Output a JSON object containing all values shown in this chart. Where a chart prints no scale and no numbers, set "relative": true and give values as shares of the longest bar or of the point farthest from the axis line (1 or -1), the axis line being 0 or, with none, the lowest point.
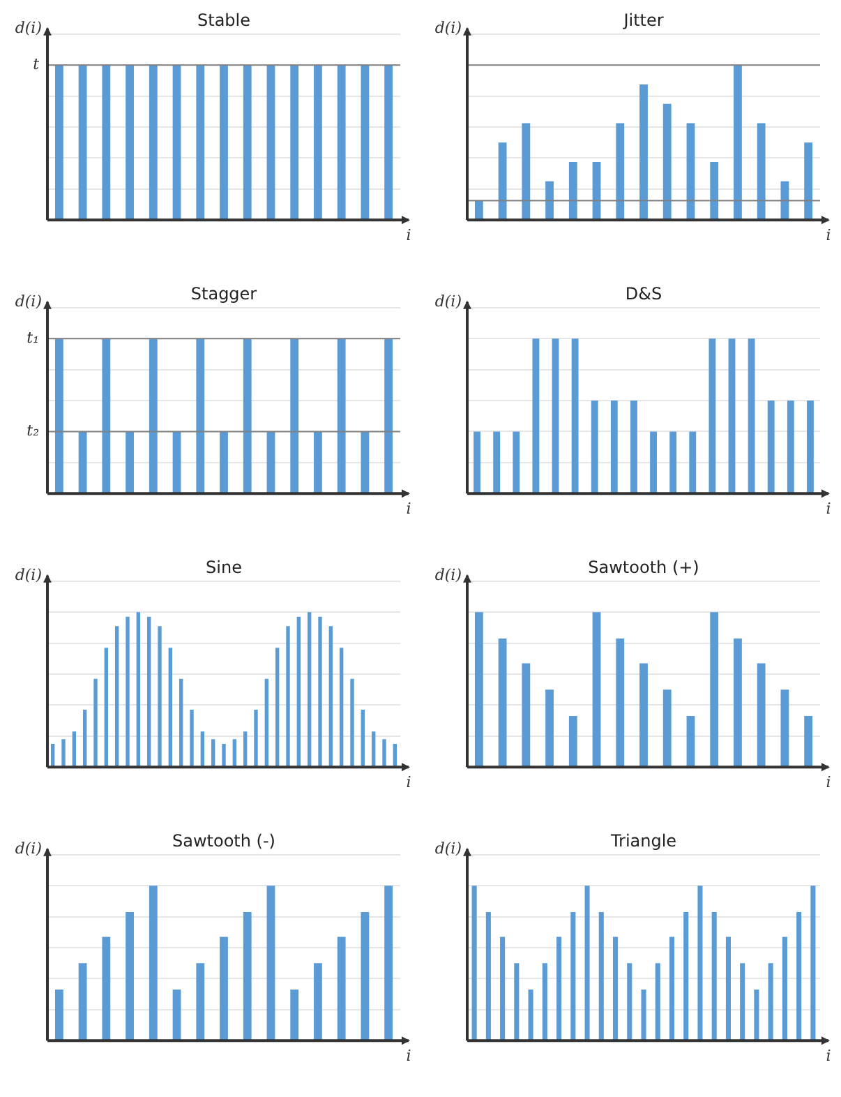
{
  "chart_data": [
    {
      "type": "bar",
      "title": "Stable",
      "xlabel": "i",
      "ylabel": "d(i)",
      "relative": true,
      "grid": "y",
      "color": "#5b9bd5",
      "categories": [
        null,
        null,
        null,
        null,
        null,
        null,
        null,
        null,
        null,
        null,
        null,
        null,
        null,
        null,
        null
      ],
      "values": [
        1,
        1,
        1,
        1,
        1,
        1,
        1,
        1,
        1,
        1,
        1,
        1,
        1,
        1,
        1
      ],
      "ref_lines": [
        {
          "axis": "y",
          "value": 1,
          "label": "t",
          "color": "#808080"
        }
      ]
    },
    {
      "type": "bar",
      "title": "Jitter",
      "xlabel": "i",
      "ylabel": "d(i)",
      "relative": true,
      "grid": "y",
      "color": "#5b9bd5",
      "categories": [
        null,
        null,
        null,
        null,
        null,
        null,
        null,
        null,
        null,
        null,
        null,
        null,
        null,
        null,
        null
      ],
      "values": [
        0.125,
        0.5,
        0.625,
        0.25,
        0.375,
        0.375,
        0.625,
        0.875,
        0.75,
        0.625,
        0.375,
        1,
        0.625,
        0.25,
        0.5
      ],
      "ref_lines": [
        {
          "axis": "y",
          "value": 1,
          "color": "#808080"
        },
        {
          "axis": "y",
          "value": 0.125,
          "color": "#808080"
        }
      ]
    },
    {
      "type": "bar",
      "title": "Stagger",
      "xlabel": "i",
      "ylabel": "d(i)",
      "relative": true,
      "grid": "y",
      "color": "#5b9bd5",
      "categories": [
        null,
        null,
        null,
        null,
        null,
        null,
        null,
        null,
        null,
        null,
        null,
        null,
        null,
        null,
        null
      ],
      "values": [
        1,
        0.4,
        1,
        0.4,
        1,
        0.4,
        1,
        0.4,
        1,
        0.4,
        1,
        0.4,
        1,
        0.4,
        1
      ],
      "ref_lines": [
        {
          "axis": "y",
          "value": 1,
          "label": "t₁",
          "color": "#808080"
        },
        {
          "axis": "y",
          "value": 0.4,
          "label": "t₂",
          "color": "#808080"
        }
      ]
    },
    {
      "type": "bar",
      "title": "D&S",
      "xlabel": "i",
      "ylabel": "d(i)",
      "relative": true,
      "grid": "y",
      "color": "#5b9bd5",
      "categories": [
        null,
        null,
        null,
        null,
        null,
        null,
        null,
        null,
        null,
        null,
        null,
        null,
        null,
        null,
        null,
        null,
        null,
        null
      ],
      "values": [
        0.4,
        0.4,
        0.4,
        1,
        1,
        1,
        0.6,
        0.6,
        0.6,
        0.4,
        0.4,
        0.4,
        1,
        1,
        1,
        0.6,
        0.6,
        0.6
      ]
    },
    {
      "type": "bar",
      "title": "Sine",
      "xlabel": "i",
      "ylabel": "d(i)",
      "relative": true,
      "grid": "y",
      "color": "#5b9bd5",
      "categories": [
        null,
        null,
        null,
        null,
        null,
        null,
        null,
        null,
        null,
        null,
        null,
        null,
        null,
        null,
        null,
        null,
        null,
        null,
        null,
        null,
        null,
        null,
        null,
        null,
        null,
        null,
        null,
        null,
        null,
        null,
        null,
        null,
        null
      ],
      "values": [
        0.15,
        0.18,
        0.23,
        0.37,
        0.57,
        0.77,
        0.91,
        0.97,
        1,
        0.97,
        0.91,
        0.77,
        0.57,
        0.37,
        0.23,
        0.18,
        0.15,
        0.18,
        0.23,
        0.37,
        0.57,
        0.77,
        0.91,
        0.97,
        1,
        0.97,
        0.91,
        0.77,
        0.57,
        0.37,
        0.23,
        0.18,
        0.15
      ]
    },
    {
      "type": "bar",
      "title": "Sawtooth (+)",
      "xlabel": "i",
      "ylabel": "d(i)",
      "relative": true,
      "grid": "y",
      "color": "#5b9bd5",
      "categories": [
        null,
        null,
        null,
        null,
        null,
        null,
        null,
        null,
        null,
        null,
        null,
        null,
        null,
        null,
        null
      ],
      "values": [
        1,
        0.83,
        0.67,
        0.5,
        0.33,
        1,
        0.83,
        0.67,
        0.5,
        0.33,
        1,
        0.83,
        0.67,
        0.5,
        0.33
      ]
    },
    {
      "type": "bar",
      "title": "Sawtooth (-)",
      "xlabel": "i",
      "ylabel": "d(i)",
      "relative": true,
      "grid": "y",
      "color": "#5b9bd5",
      "categories": [
        null,
        null,
        null,
        null,
        null,
        null,
        null,
        null,
        null,
        null,
        null,
        null,
        null,
        null,
        null
      ],
      "values": [
        0.33,
        0.5,
        0.67,
        0.83,
        1,
        0.33,
        0.5,
        0.67,
        0.83,
        1,
        0.33,
        0.5,
        0.67,
        0.83,
        1
      ]
    },
    {
      "type": "bar",
      "title": "Triangle",
      "xlabel": "i",
      "ylabel": "d(i)",
      "relative": true,
      "grid": "y",
      "color": "#5b9bd5",
      "categories": [
        null,
        null,
        null,
        null,
        null,
        null,
        null,
        null,
        null,
        null,
        null,
        null,
        null,
        null,
        null,
        null,
        null,
        null,
        null,
        null,
        null,
        null,
        null,
        null,
        null
      ],
      "values": [
        1,
        0.83,
        0.67,
        0.5,
        0.33,
        0.5,
        0.67,
        0.83,
        1,
        0.83,
        0.67,
        0.5,
        0.33,
        0.5,
        0.67,
        0.83,
        1,
        0.83,
        0.67,
        0.5,
        0.33,
        0.5,
        0.67,
        0.83,
        1
      ]
    }
  ]
}
